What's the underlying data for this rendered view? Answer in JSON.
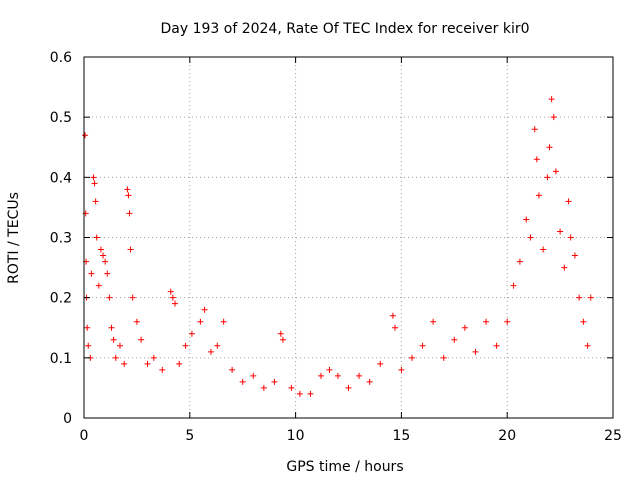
{
  "chart_data": {
    "type": "scatter",
    "title": "Day 193 of 2024, Rate Of TEC Index for receiver kir0",
    "xlabel": "GPS time / hours",
    "ylabel": "ROTI / TECUs",
    "xlim": [
      0,
      25
    ],
    "ylim": [
      0,
      0.6
    ],
    "xticks": [
      0,
      5,
      10,
      15,
      20,
      25
    ],
    "yticks": [
      0,
      0.1,
      0.2,
      0.3,
      0.4,
      0.5,
      0.6
    ],
    "xtick_labels": [
      "0",
      "5",
      "10",
      "15",
      "20",
      "25"
    ],
    "ytick_labels": [
      "0",
      "0.1",
      "0.2",
      "0.3",
      "0.4",
      "0.5",
      "0.6"
    ],
    "grid": true,
    "marker": "+",
    "color": "#ff0000",
    "series": [
      {
        "points": [
          [
            0.05,
            0.47
          ],
          [
            0.08,
            0.34
          ],
          [
            0.1,
            0.26
          ],
          [
            0.12,
            0.2
          ],
          [
            0.15,
            0.15
          ],
          [
            0.2,
            0.12
          ],
          [
            0.3,
            0.1
          ],
          [
            0.35,
            0.24
          ],
          [
            0.45,
            0.4
          ],
          [
            0.5,
            0.39
          ],
          [
            0.55,
            0.36
          ],
          [
            0.6,
            0.3
          ],
          [
            0.7,
            0.22
          ],
          [
            0.8,
            0.28
          ],
          [
            0.9,
            0.27
          ],
          [
            1.0,
            0.26
          ],
          [
            1.1,
            0.24
          ],
          [
            1.2,
            0.2
          ],
          [
            1.3,
            0.15
          ],
          [
            1.4,
            0.13
          ],
          [
            1.5,
            0.1
          ],
          [
            1.7,
            0.12
          ],
          [
            1.9,
            0.09
          ],
          [
            2.05,
            0.38
          ],
          [
            2.1,
            0.37
          ],
          [
            2.15,
            0.34
          ],
          [
            2.2,
            0.28
          ],
          [
            2.3,
            0.2
          ],
          [
            2.5,
            0.16
          ],
          [
            2.7,
            0.13
          ],
          [
            3.0,
            0.09
          ],
          [
            3.3,
            0.1
          ],
          [
            3.7,
            0.08
          ],
          [
            4.1,
            0.21
          ],
          [
            4.2,
            0.2
          ],
          [
            4.3,
            0.19
          ],
          [
            4.5,
            0.09
          ],
          [
            4.8,
            0.12
          ],
          [
            5.1,
            0.14
          ],
          [
            5.5,
            0.16
          ],
          [
            5.7,
            0.18
          ],
          [
            6.0,
            0.11
          ],
          [
            6.3,
            0.12
          ],
          [
            6.6,
            0.16
          ],
          [
            7.0,
            0.08
          ],
          [
            7.5,
            0.06
          ],
          [
            8.0,
            0.07
          ],
          [
            8.5,
            0.05
          ],
          [
            9.0,
            0.06
          ],
          [
            9.3,
            0.14
          ],
          [
            9.4,
            0.13
          ],
          [
            9.8,
            0.05
          ],
          [
            10.2,
            0.04
          ],
          [
            10.7,
            0.04
          ],
          [
            11.2,
            0.07
          ],
          [
            11.6,
            0.08
          ],
          [
            12.0,
            0.07
          ],
          [
            12.5,
            0.05
          ],
          [
            13.0,
            0.07
          ],
          [
            13.5,
            0.06
          ],
          [
            14.0,
            0.09
          ],
          [
            14.6,
            0.17
          ],
          [
            14.7,
            0.15
          ],
          [
            15.0,
            0.08
          ],
          [
            15.5,
            0.1
          ],
          [
            16.0,
            0.12
          ],
          [
            16.5,
            0.16
          ],
          [
            17.0,
            0.1
          ],
          [
            17.5,
            0.13
          ],
          [
            18.0,
            0.15
          ],
          [
            18.5,
            0.11
          ],
          [
            19.0,
            0.16
          ],
          [
            19.5,
            0.12
          ],
          [
            20.0,
            0.16
          ],
          [
            20.3,
            0.22
          ],
          [
            20.6,
            0.26
          ],
          [
            20.9,
            0.33
          ],
          [
            21.1,
            0.3
          ],
          [
            21.3,
            0.48
          ],
          [
            21.4,
            0.43
          ],
          [
            21.5,
            0.37
          ],
          [
            21.7,
            0.28
          ],
          [
            21.9,
            0.4
          ],
          [
            22.0,
            0.45
          ],
          [
            22.1,
            0.53
          ],
          [
            22.2,
            0.5
          ],
          [
            22.3,
            0.41
          ],
          [
            22.5,
            0.31
          ],
          [
            22.7,
            0.25
          ],
          [
            22.9,
            0.36
          ],
          [
            23.0,
            0.3
          ],
          [
            23.2,
            0.27
          ],
          [
            23.4,
            0.2
          ],
          [
            23.6,
            0.16
          ],
          [
            23.8,
            0.12
          ],
          [
            23.95,
            0.2
          ]
        ]
      }
    ]
  }
}
